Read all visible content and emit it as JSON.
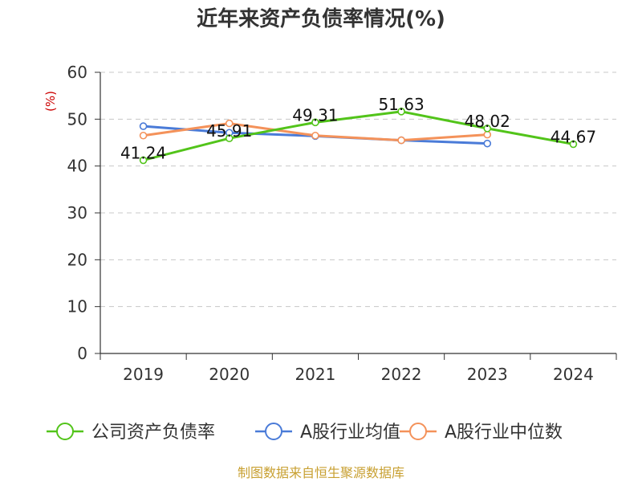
{
  "chart_data": {
    "type": "line",
    "title": "近年来资产负债率情况(%)",
    "ylabel": "(%)",
    "xlabel": "",
    "categories": [
      "2019",
      "2020",
      "2021",
      "2022",
      "2023",
      "2024"
    ],
    "ylim": [
      0,
      60
    ],
    "yticks": [
      0,
      10,
      20,
      30,
      40,
      50,
      60
    ],
    "grid": true,
    "legend_position": "bottom",
    "series": [
      {
        "name": "公司资产负债率",
        "color": "#52c41a",
        "values": [
          41.24,
          45.91,
          49.31,
          51.63,
          48.02,
          44.67
        ],
        "labels": [
          "41.24",
          "45.91",
          "49.31",
          "51.63",
          "48.02",
          "44.67"
        ]
      },
      {
        "name": "A股行业均值",
        "color": "#4a7bd8",
        "values": [
          48.5,
          47.1,
          46.4,
          45.5,
          44.8,
          null
        ]
      },
      {
        "name": "A股行业中位数",
        "color": "#f4925a",
        "values": [
          46.5,
          49.1,
          46.5,
          45.5,
          46.7,
          null
        ]
      }
    ]
  },
  "footer": {
    "source": "制图数据来自恒生聚源数据库"
  }
}
